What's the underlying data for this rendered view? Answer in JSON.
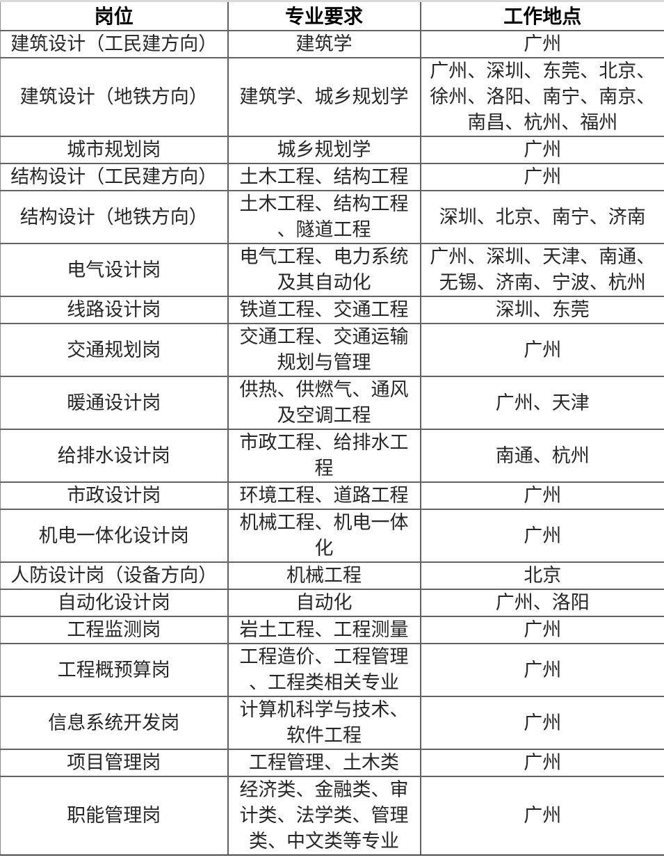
{
  "table": {
    "columns": [
      {
        "key": "position",
        "label": "岗位"
      },
      {
        "key": "major",
        "label": "专业要求"
      },
      {
        "key": "location",
        "label": "工作地点"
      }
    ],
    "rows": [
      {
        "position": "建筑设计（工民建方向）",
        "major": "建筑学",
        "location": "广州"
      },
      {
        "position": "建筑设计（地铁方向）",
        "major": "建筑学、城乡规划学",
        "location": "广州、深圳、东莞、北京、\n徐州、洛阳、南宁、南京、\n南昌、杭州、福州"
      },
      {
        "position": "城市规划岗",
        "major": "城乡规划学",
        "location": "广州"
      },
      {
        "position": "结构设计（工民建方向）",
        "major": "土木工程、结构工程",
        "location": "广州"
      },
      {
        "position": "结构设计（地铁方向）",
        "major": "土木工程、结构工程\n、隧道工程",
        "location": "深圳、北京、南宁、济南"
      },
      {
        "position": "电气设计岗",
        "major": "电气工程、电力系统\n及其自动化",
        "location": "广州、深圳、天津、南通、\n无锡、济南、宁波、杭州"
      },
      {
        "position": "线路设计岗",
        "major": "铁道工程、交通工程",
        "location": "深圳、东莞"
      },
      {
        "position": "交通规划岗",
        "major": "交通工程、交通运输\n规划与管理",
        "location": "广州"
      },
      {
        "position": "暖通设计岗",
        "major": "供热、供燃气、通风\n及空调工程",
        "location": "广州、天津"
      },
      {
        "position": "给排水设计岗",
        "major": "市政工程、给排水工\n程",
        "location": "南通、杭州"
      },
      {
        "position": "市政设计岗",
        "major": "环境工程、道路工程",
        "location": "广州"
      },
      {
        "position": "机电一体化设计岗",
        "major": "机械工程、机电一体\n化",
        "location": "广州"
      },
      {
        "position": "人防设计岗（设备方向）",
        "major": "机械工程",
        "location": "北京"
      },
      {
        "position": "自动化设计岗",
        "major": "自动化",
        "location": "广州、洛阳"
      },
      {
        "position": "工程监测岗",
        "major": "岩土工程、工程测量",
        "location": "广州"
      },
      {
        "position": "工程概预算岗",
        "major": "工程造价、工程管理\n、工程类相关专业",
        "location": "广州"
      },
      {
        "position": "信息系统开发岗",
        "major": "计算机科学与技术、\n软件工程",
        "location": "广州"
      },
      {
        "position": "项目管理岗",
        "major": "工程管理、土木类",
        "location": "广州"
      },
      {
        "position": "职能管理岗",
        "major": "经济类、金融类、审\n计类、法学类、管理\n类、中文类等专业",
        "location": "广州"
      }
    ]
  },
  "colors": {
    "grid_border": "#636363",
    "outer_top_border": "#d9d9d9",
    "text": "#262626",
    "header_text": "#000000",
    "background": "#ffffff"
  }
}
